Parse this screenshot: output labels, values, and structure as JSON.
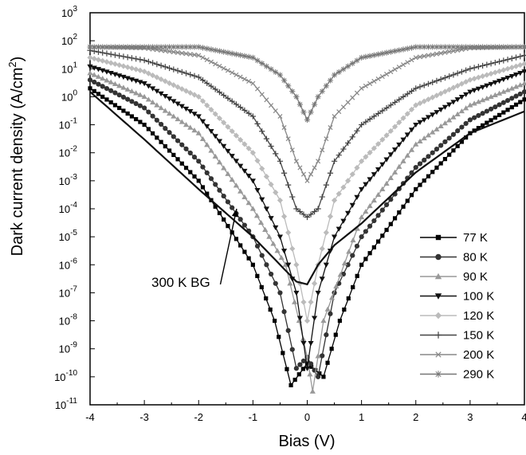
{
  "chart_data": {
    "type": "line",
    "xlabel": "Bias (V)",
    "ylabel_main": "Dark current density (A/cm",
    "ylabel_sup": "2",
    "ylabel_end": ")",
    "xlim": [
      -4,
      4
    ],
    "ylim": [
      1e-11,
      1000
    ],
    "yscale": "log",
    "grid": false,
    "legend_position": "lower-right",
    "x_ticks": [
      {
        "value": -4,
        "label": "-4"
      },
      {
        "value": -3,
        "label": "-3"
      },
      {
        "value": -2,
        "label": "-2"
      },
      {
        "value": -1,
        "label": "-1"
      },
      {
        "value": 0,
        "label": "0"
      },
      {
        "value": 1,
        "label": "1"
      },
      {
        "value": 2,
        "label": "2"
      },
      {
        "value": 3,
        "label": "3"
      },
      {
        "value": 4,
        "label": "4"
      }
    ],
    "y_ticks": [
      {
        "exp": -11,
        "base": "10",
        "sup": "-11"
      },
      {
        "exp": -10,
        "base": "10",
        "sup": "-10"
      },
      {
        "exp": -9,
        "base": "10",
        "sup": "-9"
      },
      {
        "exp": -8,
        "base": "10",
        "sup": "-8"
      },
      {
        "exp": -7,
        "base": "10",
        "sup": "-7"
      },
      {
        "exp": -6,
        "base": "10",
        "sup": "-6"
      },
      {
        "exp": -5,
        "base": "10",
        "sup": "-5"
      },
      {
        "exp": -4,
        "base": "10",
        "sup": "-4"
      },
      {
        "exp": -3,
        "base": "10",
        "sup": "-3"
      },
      {
        "exp": -2,
        "base": "10",
        "sup": "-2"
      },
      {
        "exp": -1,
        "base": "10",
        "sup": "-1"
      },
      {
        "exp": 0,
        "base": "10",
        "sup": "0"
      },
      {
        "exp": 1,
        "base": "10",
        "sup": "1"
      },
      {
        "exp": 2,
        "base": "10",
        "sup": "2"
      },
      {
        "exp": 3,
        "base": "10",
        "sup": "3"
      }
    ],
    "series": [
      {
        "name": "77 K",
        "color": "#000000",
        "marker": "square",
        "x": [
          -4,
          -3,
          -2,
          -1,
          -0.6,
          -0.3,
          0,
          0.3,
          0.6,
          1,
          2,
          3,
          4
        ],
        "y": [
          2.0,
          0.1,
          0.001,
          1e-06,
          1e-08,
          5e-11,
          3e-10,
          1e-10,
          1e-08,
          1e-06,
          0.0005,
          0.05,
          0.8
        ]
      },
      {
        "name": "80 K",
        "color": "#333333",
        "marker": "circle",
        "x": [
          -4,
          -3,
          -2,
          -1,
          -0.5,
          -0.2,
          0,
          0.2,
          0.5,
          1,
          2,
          3,
          4
        ],
        "y": [
          4.0,
          0.4,
          0.005,
          1e-05,
          1e-07,
          2e-10,
          5e-10,
          1e-10,
          1e-07,
          1e-05,
          0.003,
          0.15,
          1.5
        ]
      },
      {
        "name": "90 K",
        "color": "#999999",
        "marker": "triangle-up",
        "x": [
          -4,
          -3,
          -2,
          -1,
          -0.4,
          -0.15,
          0,
          0.1,
          0.3,
          1,
          2,
          3,
          4
        ],
        "y": [
          7.0,
          1.0,
          0.05,
          0.0001,
          1e-06,
          1e-08,
          5e-10,
          3e-11,
          1e-08,
          5e-05,
          0.02,
          0.5,
          3.0
        ]
      },
      {
        "name": "100 K",
        "color": "#111111",
        "marker": "triangle-down",
        "x": [
          -4,
          -3,
          -2,
          -1,
          -0.5,
          -0.2,
          0,
          0.2,
          0.5,
          1,
          2,
          3,
          4
        ],
        "y": [
          12,
          3.0,
          0.2,
          0.001,
          1e-05,
          1e-07,
          2e-10,
          1e-07,
          1e-05,
          0.0005,
          0.1,
          1.5,
          8.0
        ]
      },
      {
        "name": "120 K",
        "color": "#bbbbbb",
        "marker": "diamond",
        "x": [
          -4,
          -3,
          -2,
          -1,
          -0.5,
          -0.2,
          0,
          0.2,
          0.5,
          1,
          2,
          3,
          4
        ],
        "y": [
          25,
          8.0,
          1.0,
          0.01,
          0.0002,
          1e-06,
          1e-08,
          1e-06,
          0.0002,
          0.005,
          0.5,
          4.0,
          15
        ]
      },
      {
        "name": "150 K",
        "color": "#444444",
        "marker": "plus",
        "x": [
          -4,
          -3,
          -2,
          -1,
          -0.5,
          -0.2,
          0,
          0.2,
          0.5,
          1,
          2,
          3,
          4
        ],
        "y": [
          45,
          20,
          5.0,
          0.2,
          0.005,
          0.0001,
          5e-05,
          0.0001,
          0.005,
          0.1,
          2.0,
          10,
          30
        ]
      },
      {
        "name": "200 K",
        "color": "#888888",
        "marker": "x",
        "x": [
          -4,
          -3,
          -2,
          -1,
          -0.5,
          -0.2,
          0,
          0.2,
          0.5,
          1,
          2,
          3,
          4
        ],
        "y": [
          60,
          55,
          30,
          3.0,
          0.2,
          0.005,
          0.001,
          0.005,
          0.2,
          2.0,
          25,
          55,
          60
        ]
      },
      {
        "name": "290 K",
        "color": "#777777",
        "marker": "asterisk",
        "x": [
          -4,
          -3,
          -2,
          -1,
          -0.5,
          -0.2,
          0,
          0.2,
          0.5,
          1,
          2,
          3,
          4
        ],
        "y": [
          60,
          60,
          60,
          25,
          6.0,
          1.0,
          0.15,
          1.0,
          6.0,
          25,
          60,
          60,
          60
        ]
      }
    ],
    "background_curve": {
      "label": "300 K BG",
      "x": [
        -4,
        -3,
        -2,
        -1,
        -0.5,
        -0.2,
        0,
        0.2,
        0.5,
        1,
        2,
        3,
        4
      ],
      "y": [
        1.5,
        0.03,
        0.0005,
        1e-05,
        1e-06,
        2.5e-07,
        2e-07,
        1e-06,
        5e-06,
        3e-05,
        0.002,
        0.05,
        0.3
      ]
    },
    "annotation": {
      "text": "300 K BG",
      "arrow_from": [
        -1.6,
        2e-07
      ],
      "arrow_to": [
        -1.3,
        0.0001
      ]
    }
  }
}
